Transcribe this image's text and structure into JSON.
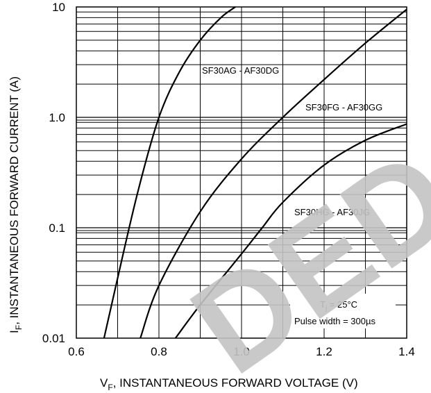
{
  "chart_data": {
    "type": "line",
    "xlabel": "V",
    "xlabel_sub": "F",
    "xlabel_rest": ", INSTANTANEOUS FORWARD VOLTAGE (V)",
    "ylabel": "I",
    "ylabel_sub": "F",
    "ylabel_rest": ", INSTANTANEOUS FORWARD CURRENT (A)",
    "xlim": [
      0.6,
      1.4
    ],
    "ylim": [
      0.01,
      10
    ],
    "yscale": "log",
    "grid": true,
    "xticks": [
      {
        "value": 0.6,
        "label": "0.6"
      },
      {
        "value": 0.8,
        "label": "0.8"
      },
      {
        "value": 1.0,
        "label": "1.0"
      },
      {
        "value": 1.2,
        "label": "1.2"
      },
      {
        "value": 1.4,
        "label": "1.4"
      }
    ],
    "yticks": [
      {
        "value": 0.01,
        "label": "0.01"
      },
      {
        "value": 0.1,
        "label": "0.1"
      },
      {
        "value": 1.0,
        "label": "1.0"
      },
      {
        "value": 10,
        "label": "10"
      }
    ],
    "series": [
      {
        "name": "SF30AG - AF30DG",
        "x": [
          0.667,
          0.7,
          0.75,
          0.8,
          0.85,
          0.9,
          0.95,
          0.985
        ],
        "y": [
          0.01,
          0.035,
          0.22,
          1.0,
          2.6,
          5.0,
          8.0,
          10.0
        ]
      },
      {
        "name": "SF30FG - AF30GG",
        "x": [
          0.755,
          0.8,
          0.9,
          1.0,
          1.1,
          1.2,
          1.3,
          1.4
        ],
        "y": [
          0.01,
          0.03,
          0.14,
          0.42,
          1.0,
          2.2,
          4.7,
          9.5
        ]
      },
      {
        "name": "SF30HG - AF30JG",
        "x": [
          0.84,
          0.9,
          1.0,
          1.05,
          1.1,
          1.2,
          1.3,
          1.4
        ],
        "y": [
          0.01,
          0.02,
          0.058,
          0.1,
          0.17,
          0.37,
          0.62,
          0.87
        ]
      }
    ],
    "annotations": {
      "temperature": {
        "prefix": "T",
        "sub": "j",
        "suffix": " = 25°C"
      },
      "pulse": "Pulse width = 300µs"
    },
    "watermark": "DED"
  }
}
